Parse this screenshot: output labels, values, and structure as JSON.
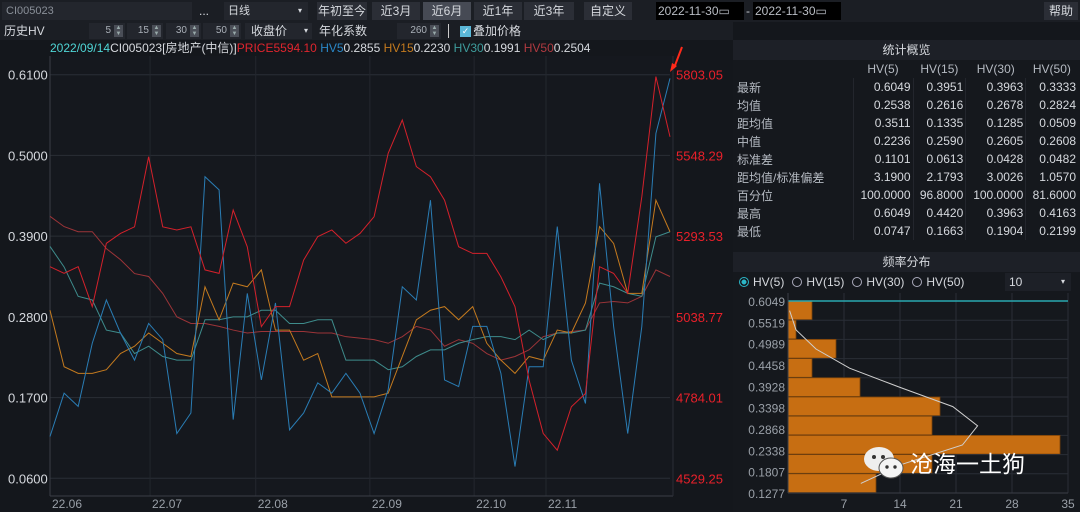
{
  "toolbar": {
    "code": "CI005023",
    "more": "...",
    "period": "日线",
    "ranges": [
      "年初至今",
      "近3月",
      "近6月",
      "近1年",
      "近3年"
    ],
    "active_range": "近6月",
    "custom": "自定义",
    "date_from": "2022-11-30",
    "date_to": "2022-11-30",
    "date_sep": "-",
    "help": "帮助"
  },
  "params": {
    "title": "历史HV",
    "windows": [
      "5",
      "15",
      "30",
      "50"
    ],
    "price_type": "收盘价",
    "annual_label": "年化系数",
    "annual_value": "260",
    "overlay_label": "叠加价格",
    "overlay_checked": true
  },
  "info": {
    "date": "2022/09/14",
    "name": "CI005023[房地产(中信)]",
    "price_label": "PRICE",
    "price": "5594.10",
    "hv5_label": "HV5",
    "hv5": "0.2855",
    "hv15_label": "HV15",
    "hv15": "0.2230",
    "hv30_label": "HV30",
    "hv30": "0.1991",
    "hv50_label": "HV50",
    "hv50": "0.2504"
  },
  "colors": {
    "price": "#d4212b",
    "hv5": "#2a7db5",
    "hv15": "#c47a1e",
    "hv30": "#3e8c8c",
    "hv50": "#9c3438",
    "hist": "#c76e12"
  },
  "chart_data": [
    {
      "type": "line",
      "x_ticks": [
        {
          "label": "22.06",
          "at": 0
        },
        {
          "label": "22.07",
          "at": 7.1
        },
        {
          "label": "22.08",
          "at": 14.6
        },
        {
          "label": "22.09",
          "at": 22.7
        },
        {
          "label": "22.10",
          "at": 30.1
        },
        {
          "label": "22.11",
          "at": 35.2
        }
      ],
      "y_left": {
        "ticks": [
          "0.6100",
          "0.5000",
          "0.3900",
          "0.2800",
          "0.1700",
          "0.0600"
        ],
        "range": [
          0.06,
          0.61
        ]
      },
      "y_right": {
        "ticks": [
          "5803.05",
          "5548.29",
          "5293.53",
          "5038.77",
          "4784.01",
          "4529.25"
        ],
        "range": [
          4529.25,
          5803.05
        ]
      },
      "grid": true,
      "series": [
        {
          "name": "PRICE",
          "axis": "right",
          "color": "#d4212b",
          "values": [
            5197,
            5176,
            5197,
            5071,
            5271,
            5302,
            5323,
            5544,
            5323,
            5313,
            5323,
            5187,
            5176,
            5376,
            5260,
            5008,
            5071,
            5071,
            5218,
            5292,
            5313,
            5271,
            5302,
            5355,
            5555,
            5660,
            5513,
            5481,
            5407,
            5260,
            5239,
            5239,
            5165,
            5071,
            4839,
            4671,
            4618,
            4755,
            4797,
            5197,
            5176,
            5113,
            5418,
            5797,
            5607
          ]
        },
        {
          "name": "HV5",
          "axis": "left",
          "color": "#2a7db5",
          "values": [
            0.117,
            0.176,
            0.158,
            0.244,
            0.303,
            0.258,
            0.221,
            0.271,
            0.249,
            0.121,
            0.149,
            0.471,
            0.453,
            0.14,
            0.312,
            0.194,
            0.299,
            0.126,
            0.149,
            0.19,
            0.176,
            0.203,
            0.176,
            0.121,
            0.181,
            0.321,
            0.303,
            0.439,
            0.194,
            0.185,
            0.267,
            0.267,
            0.203,
            0.076,
            0.212,
            0.212,
            0.403,
            0.221,
            0.162,
            0.462,
            0.267,
            0.121,
            0.267,
            0.53,
            0.605
          ]
        },
        {
          "name": "HV15",
          "axis": "left",
          "color": "#c47a1e",
          "values": [
            0.289,
            0.212,
            0.203,
            0.203,
            0.208,
            0.23,
            0.24,
            0.258,
            0.244,
            0.23,
            0.226,
            0.321,
            0.276,
            0.326,
            0.321,
            0.344,
            0.262,
            0.262,
            0.221,
            0.23,
            0.171,
            0.171,
            0.171,
            0.171,
            0.176,
            0.226,
            0.276,
            0.289,
            0.294,
            0.276,
            0.294,
            0.244,
            0.221,
            0.203,
            0.226,
            0.221,
            0.262,
            0.258,
            0.299,
            0.403,
            0.38,
            0.312,
            0.312,
            0.439,
            0.396
          ]
        },
        {
          "name": "HV30",
          "axis": "left",
          "color": "#3e8c8c",
          "values": [
            0.376,
            0.348,
            0.308,
            0.303,
            0.262,
            0.258,
            0.23,
            0.24,
            0.226,
            0.221,
            0.221,
            0.276,
            0.276,
            0.28,
            0.28,
            0.289,
            0.289,
            0.271,
            0.271,
            0.276,
            0.276,
            0.221,
            0.221,
            0.221,
            0.208,
            0.212,
            0.226,
            0.235,
            0.235,
            0.244,
            0.249,
            0.253,
            0.253,
            0.249,
            0.262,
            0.249,
            0.258,
            0.258,
            0.262,
            0.326,
            0.321,
            0.312,
            0.308,
            0.389,
            0.396
          ]
        },
        {
          "name": "HV50",
          "axis": "left",
          "color": "#9c3438",
          "values": [
            0.417,
            0.403,
            0.396,
            0.396,
            0.373,
            0.358,
            0.339,
            0.335,
            0.312,
            0.28,
            0.271,
            0.271,
            0.267,
            0.262,
            0.258,
            0.26,
            0.26,
            0.26,
            0.26,
            0.258,
            0.258,
            0.253,
            0.251,
            0.249,
            0.244,
            0.253,
            0.267,
            0.262,
            0.24,
            0.249,
            0.244,
            0.23,
            0.221,
            0.226,
            0.235,
            0.253,
            0.258,
            0.26,
            0.262,
            0.299,
            0.301,
            0.299,
            0.308,
            0.344,
            0.335
          ]
        }
      ]
    },
    {
      "type": "bar",
      "orientation": "horizontal",
      "categories": [
        "0.6049",
        "0.5519",
        "0.4989",
        "0.4458",
        "0.3928",
        "0.3398",
        "0.2868",
        "0.2338",
        "0.1807",
        "0.1277"
      ],
      "values": [
        3,
        1,
        6,
        3,
        9,
        19,
        18,
        34,
        18,
        11
      ],
      "fit_curve": [
        0.2,
        1,
        3.5,
        7.7,
        14,
        20.6,
        23.7,
        21.8,
        14.3,
        9.1
      ],
      "current_value": "0.6049",
      "x_ticks": [
        "7",
        "14",
        "21",
        "28",
        "35"
      ],
      "xlim": [
        0,
        35
      ]
    }
  ],
  "stats": {
    "title": "统计概览",
    "columns": [
      "HV(5)",
      "HV(15)",
      "HV(30)",
      "HV(50)"
    ],
    "rows": [
      {
        "label": "最新",
        "values": [
          "0.6049",
          "0.3951",
          "0.3963",
          "0.3333"
        ]
      },
      {
        "label": "均值",
        "values": [
          "0.2538",
          "0.2616",
          "0.2678",
          "0.2824"
        ]
      },
      {
        "label": "距均值",
        "values": [
          "0.3511",
          "0.1335",
          "0.1285",
          "0.0509"
        ]
      },
      {
        "label": "中值",
        "values": [
          "0.2236",
          "0.2590",
          "0.2605",
          "0.2608"
        ]
      },
      {
        "label": "标准差",
        "values": [
          "0.1101",
          "0.0613",
          "0.0428",
          "0.0482"
        ]
      },
      {
        "label": "距均值/标准偏差",
        "values": [
          "3.1900",
          "2.1793",
          "3.0026",
          "1.0570"
        ]
      },
      {
        "label": "百分位",
        "values": [
          "100.0000",
          "96.8000",
          "100.0000",
          "81.6000"
        ]
      },
      {
        "label": "最高",
        "values": [
          "0.6049",
          "0.4420",
          "0.3963",
          "0.4163"
        ]
      },
      {
        "label": "最低",
        "values": [
          "0.0747",
          "0.1663",
          "0.1904",
          "0.2199"
        ]
      }
    ]
  },
  "freq": {
    "title": "频率分布",
    "options": [
      "HV(5)",
      "HV(15)",
      "HV(30)",
      "HV(50)"
    ],
    "selected": "HV(5)",
    "bins": "10"
  },
  "watermark": {
    "text": "沧海一土狗"
  }
}
